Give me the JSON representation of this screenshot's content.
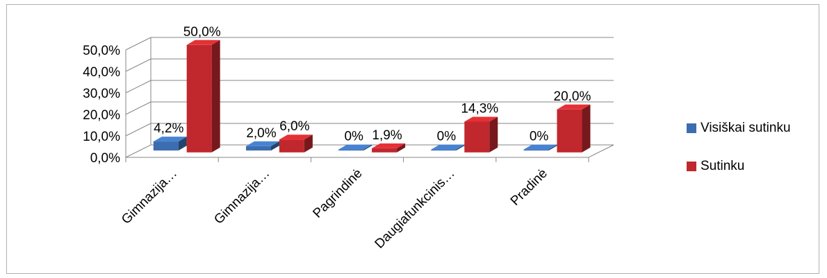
{
  "chart_data": {
    "type": "bar",
    "title": "",
    "xlabel": "",
    "ylabel": "",
    "ylim": [
      0,
      50
    ],
    "y_ticks": [
      "0,0%",
      "10,0%",
      "20,0%",
      "30,0%",
      "40,0%",
      "50,0%"
    ],
    "categories": [
      "Gimnazija…",
      "Gimnazija…",
      "Pagrindinė",
      "Daugiafunkcinis…",
      "Pradinė"
    ],
    "series": [
      {
        "name": "Visiškai sutinku",
        "color": "#3c6db0",
        "values": [
          4.2,
          2.0,
          0,
          0,
          0
        ],
        "labels": [
          "4,2%",
          "2,0%",
          "0%",
          "0%",
          "0%"
        ]
      },
      {
        "name": "Sutinku",
        "color": "#c0282d",
        "values": [
          50.0,
          6.0,
          1.9,
          14.3,
          20.0
        ],
        "labels": [
          "50,0%",
          "6,0%",
          "1,9%",
          "14,3%",
          "20,0%"
        ]
      }
    ],
    "grid": true,
    "legend_position": "right",
    "style": "3d-column"
  }
}
